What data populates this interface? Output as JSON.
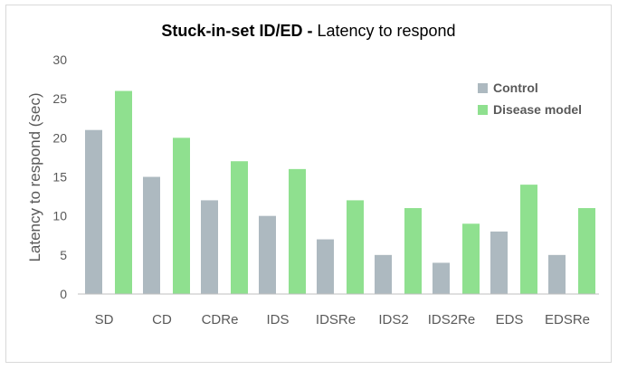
{
  "chart_data": {
    "type": "bar",
    "title": {
      "bold_part": "Stuck-in-set ID/ED -",
      "regular_part": " Latency to respond"
    },
    "xlabel": "",
    "ylabel": "Latency to respond (sec)",
    "ylim": [
      0,
      30
    ],
    "yticks": [
      0,
      5,
      10,
      15,
      20,
      25,
      30
    ],
    "grid": false,
    "legend_position": "top-right",
    "categories": [
      "SD",
      "CD",
      "CDRe",
      "IDS",
      "IDSRe",
      "IDS2",
      "IDS2Re",
      "EDS",
      "EDSRe"
    ],
    "series": [
      {
        "name": "Control",
        "color": "#adb9c0",
        "values": [
          21,
          15,
          12,
          10,
          7,
          5,
          4,
          8,
          5
        ]
      },
      {
        "name": "Disease model",
        "color": "#8fe08f",
        "values": [
          26,
          20,
          17,
          16,
          12,
          11,
          9,
          14,
          11
        ]
      }
    ]
  }
}
